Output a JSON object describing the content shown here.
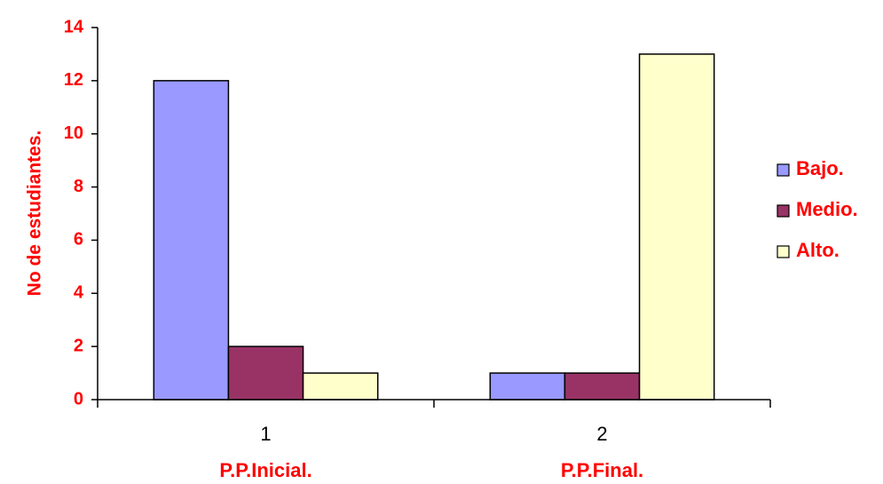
{
  "chart_data": {
    "type": "bar",
    "categories": [
      "1",
      "2"
    ],
    "group_labels": [
      "P.P.Inicial.",
      "P.P.Final."
    ],
    "series": [
      {
        "name": "Bajo.",
        "values": [
          12,
          1
        ],
        "color": "#9999ff"
      },
      {
        "name": "Medio.",
        "values": [
          2,
          1
        ],
        "color": "#993366"
      },
      {
        "name": "Alto.",
        "values": [
          1,
          13
        ],
        "color": "#ffffcc"
      }
    ],
    "ylabel": "No de estudiantes.",
    "ylim": [
      0,
      14
    ],
    "yticks": [
      "0",
      "2",
      "4",
      "6",
      "8",
      "10",
      "12",
      "14"
    ],
    "grid": false,
    "legend_position": "right",
    "label_color": "#ff0000"
  }
}
